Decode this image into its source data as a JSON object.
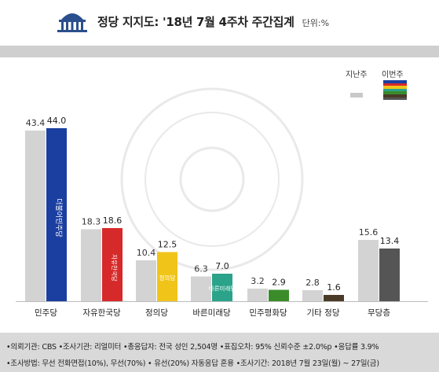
{
  "header": {
    "title": "정당 지지도: '18년 7월 4주차 주간집계",
    "unit": "단위:%"
  },
  "legend": {
    "prev_label": "지난주",
    "cur_label": "이번주",
    "cur_stripe_colors": [
      "#1a3fa0",
      "#d62a2a",
      "#f0c419",
      "#2aa38a",
      "#3a8c2a",
      "#4a3b28",
      "#555555"
    ]
  },
  "chart_data": {
    "type": "bar",
    "categories": [
      "민주당",
      "자유한국당",
      "정의당",
      "바른미래당",
      "민주평화당",
      "기타 정당",
      "무당층"
    ],
    "series": [
      {
        "name": "지난주",
        "values": [
          43.4,
          18.3,
          10.4,
          6.3,
          3.2,
          2.8,
          15.6
        ]
      },
      {
        "name": "이번주",
        "values": [
          44.0,
          18.6,
          12.5,
          7.0,
          2.9,
          1.6,
          13.4
        ]
      }
    ],
    "value_labels": {
      "prev": [
        "43.4",
        "18.3",
        "10.4",
        "6.3",
        "3.2",
        "2.8",
        "15.6"
      ],
      "cur": [
        "44.0",
        "18.6",
        "12.5",
        "7.0",
        "2.9",
        "1.6",
        "13.4"
      ]
    },
    "prev_color": "#d3d3d3",
    "cur_colors": [
      "#1a3fa0",
      "#d62a2a",
      "#f0c419",
      "#2aa38a",
      "#3a8c2a",
      "#4a3b28",
      "#555555"
    ],
    "party_marks": [
      "더불어민주당",
      "자유한국당",
      "정의당",
      "바른미래당",
      "민주평화당"
    ],
    "ylim": [
      0,
      50
    ],
    "xlabel": "",
    "ylabel": "",
    "legend_position": "top-right"
  },
  "footer": {
    "line1": "•의뢰기관: CBS  •조사기관: 리얼미터  •총응답자: 전국 성인 2,504명  •표집오차: 95% 신뢰수준 ±2.0%p  •응답률 3.9%",
    "line2": "•조사방법: 무선 전화면접(10%), 무선(70%) • 유선(20%) 자동응답 혼용  •조사기간: 2018년 7월 23일(월) ~ 27일(금)"
  }
}
